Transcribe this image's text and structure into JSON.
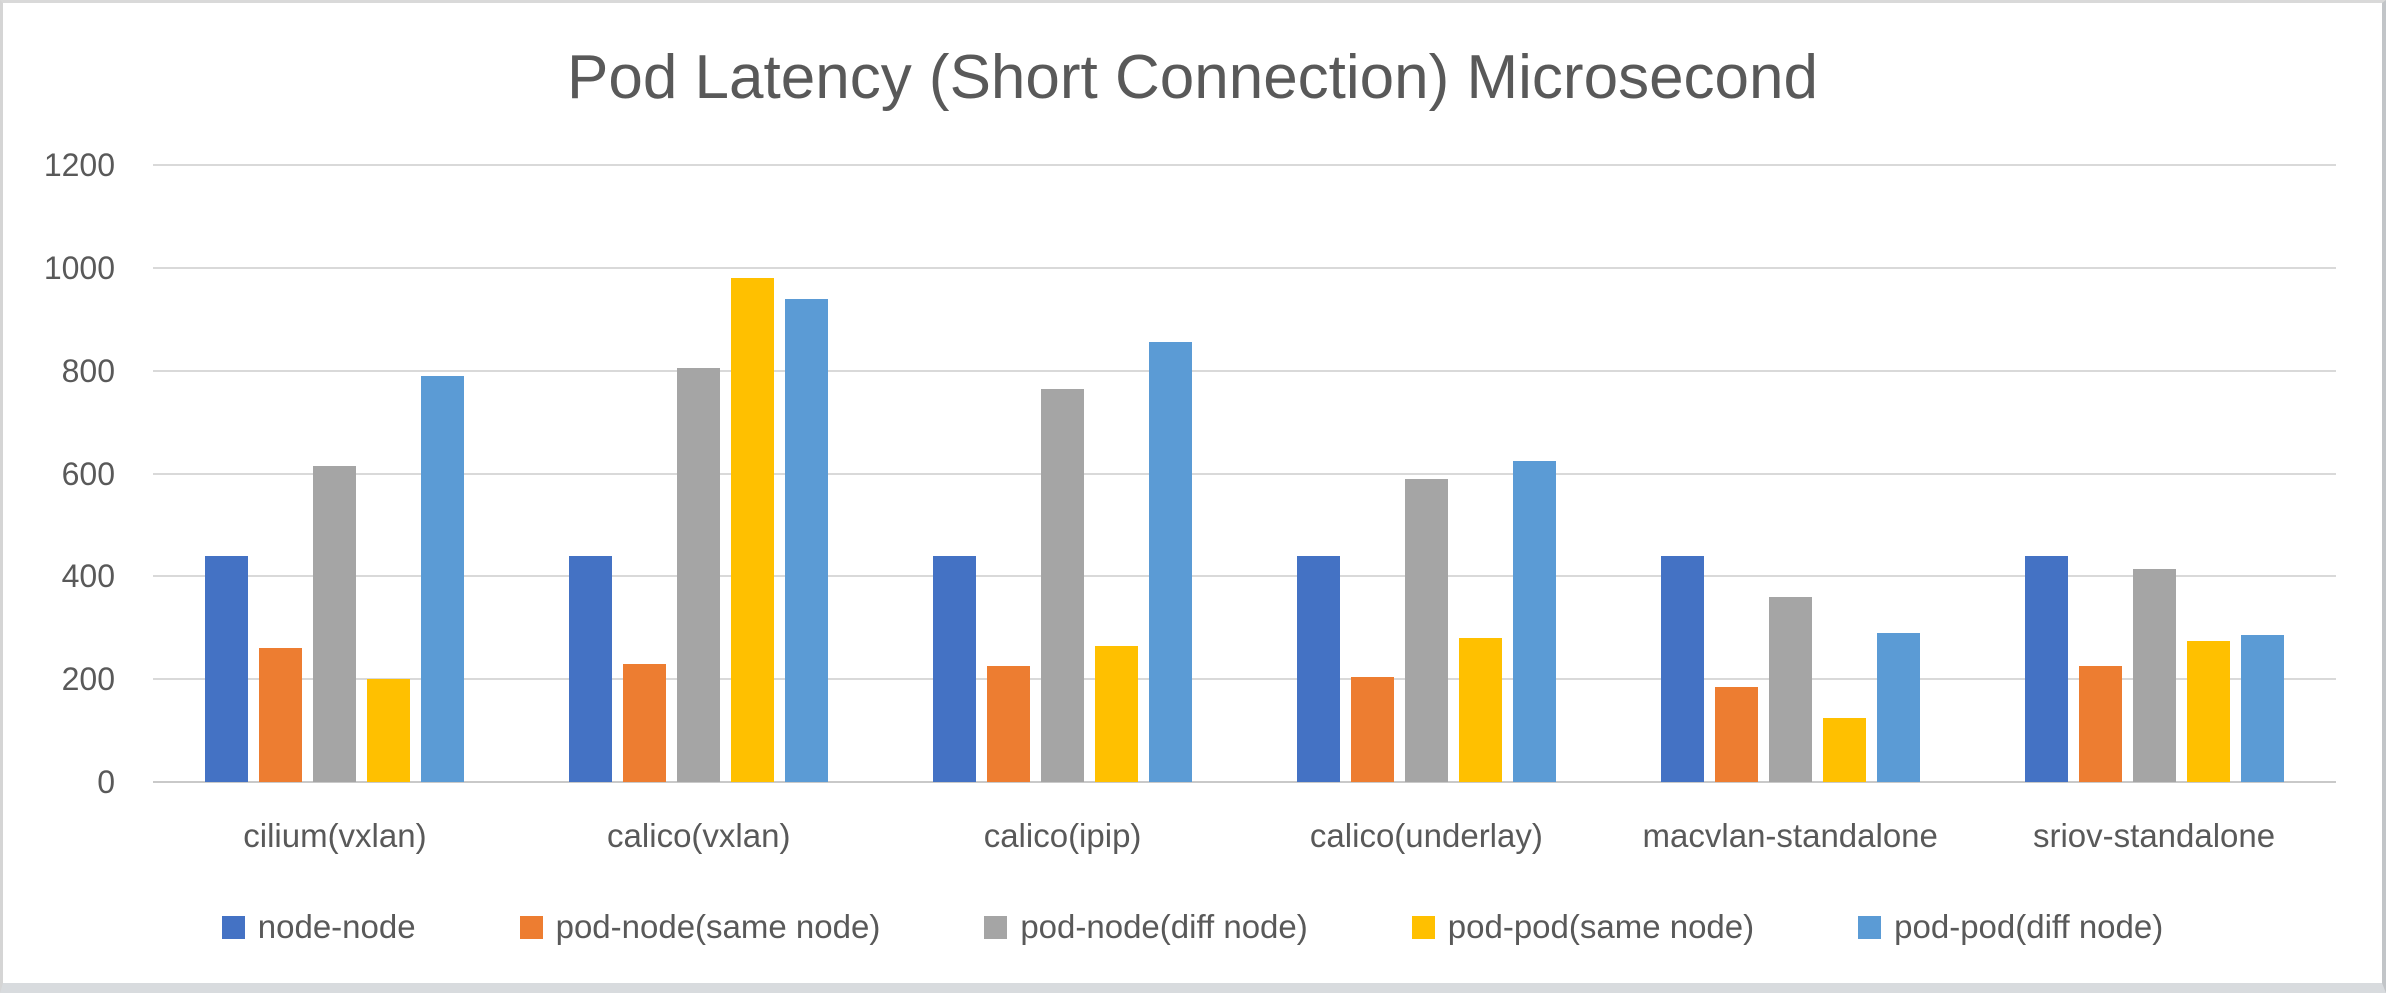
{
  "chart_data": {
    "type": "bar",
    "title": "Pod Latency (Short Connection) Microsecond",
    "xlabel": "",
    "ylabel": "",
    "ylim": [
      0,
      1200
    ],
    "ytick_interval": 200,
    "yticks": [
      0,
      200,
      400,
      600,
      800,
      1000,
      1200
    ],
    "grid": "horizontal",
    "legend_position": "bottom",
    "categories": [
      "cilium(vxlan)",
      "calico(vxlan)",
      "calico(ipip)",
      "calico(underlay)",
      "macvlan-standalone",
      "sriov-standalone"
    ],
    "series": [
      {
        "name": "node-node",
        "color": "#4472C4",
        "values": [
          440,
          440,
          440,
          440,
          440,
          440
        ]
      },
      {
        "name": "pod-node(same node)",
        "color": "#ED7D31",
        "values": [
          260,
          230,
          225,
          205,
          185,
          225
        ]
      },
      {
        "name": "pod-node(diff node)",
        "color": "#A5A5A5",
        "values": [
          615,
          805,
          765,
          590,
          360,
          415
        ]
      },
      {
        "name": "pod-pod(same node)",
        "color": "#FFC000",
        "values": [
          200,
          980,
          265,
          280,
          125,
          275
        ]
      },
      {
        "name": "pod-pod(diff node)",
        "color": "#5B9BD5",
        "values": [
          790,
          940,
          855,
          625,
          290,
          285
        ]
      }
    ],
    "style": {
      "text_color": "#595959",
      "gridline_color": "#D9D9D9",
      "background": "#FFFFFF"
    }
  }
}
